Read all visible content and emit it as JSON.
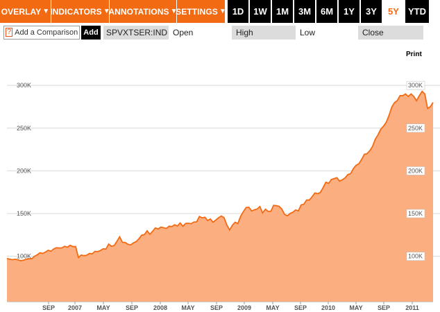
{
  "toolbar": {
    "menus": [
      {
        "label": "OVERLAY"
      },
      {
        "label": "INDICATORS"
      },
      {
        "label": "ANNOTATIONS"
      },
      {
        "label": "SETTINGS"
      }
    ],
    "caret": "▼",
    "ranges": [
      {
        "label": "1D",
        "active": false
      },
      {
        "label": "1W",
        "active": false
      },
      {
        "label": "1M",
        "active": false
      },
      {
        "label": "3M",
        "active": false
      },
      {
        "label": "6M",
        "active": false
      },
      {
        "label": "1Y",
        "active": false
      },
      {
        "label": "3Y",
        "active": false
      },
      {
        "label": "5Y",
        "active": true
      },
      {
        "label": "YTD",
        "active": false
      }
    ]
  },
  "compare": {
    "help": "?",
    "placeholder": "Add a Comparison",
    "add_label": "Add"
  },
  "ticker": "SPVXTSER:IND",
  "fields": {
    "open": "Open",
    "high": "High",
    "low": "Low",
    "close": "Close"
  },
  "print_label": "Print",
  "colors": {
    "accent": "#f26a12",
    "line": "#f26a12",
    "fill": "#fbae80"
  },
  "chart_data": {
    "type": "area",
    "x_tick_labels": [
      "SEP",
      "2007",
      "MAY",
      "SEP",
      "2008",
      "MAY",
      "SEP",
      "2009",
      "MAY",
      "SEP",
      "2010",
      "MAY",
      "SEP",
      "2011"
    ],
    "y_tick_labels": [
      "100K",
      "150K",
      "200K",
      "250K",
      "300K"
    ],
    "y_ticks": [
      100000,
      150000,
      200000,
      250000,
      300000
    ],
    "ylim": [
      47000,
      335000
    ],
    "grid": true,
    "series": [
      {
        "x": [
          0,
          4,
          8,
          12,
          16,
          20,
          24,
          28,
          32,
          36,
          40,
          44,
          48,
          52,
          56,
          60,
          64,
          68,
          72,
          76,
          80,
          84,
          88,
          92,
          96,
          100,
          104,
          108,
          112,
          116,
          120,
          124,
          128,
          132,
          136,
          140,
          144,
          148,
          152,
          156,
          160,
          164,
          168,
          172,
          176,
          180,
          184,
          188,
          192,
          196,
          200,
          204,
          208,
          212,
          216,
          220,
          224,
          228,
          232,
          236,
          240,
          244,
          248,
          252,
          256,
          260,
          264,
          268,
          272,
          276,
          280,
          284,
          288,
          292,
          296,
          300,
          304,
          308,
          312,
          316,
          320,
          324,
          328,
          332,
          336,
          340,
          344,
          348,
          352,
          356,
          360,
          364,
          368,
          372,
          376,
          380,
          384,
          388,
          392,
          396,
          400,
          404,
          408,
          412,
          416,
          420,
          424,
          428,
          432,
          436,
          440,
          444,
          448,
          452,
          456,
          460,
          464,
          468,
          472,
          476,
          480,
          484,
          488,
          492,
          496,
          500,
          504,
          508,
          512,
          516,
          520,
          524,
          528,
          532,
          536,
          540,
          544,
          548,
          552,
          556,
          560,
          564,
          568,
          572,
          576,
          580,
          584,
          588,
          592,
          596,
          600,
          604,
          608,
          612,
          616,
          620
        ],
        "values": [
          97500,
          96600,
          96100,
          96600,
          95800,
          94900,
          95400,
          96600,
          97100,
          97100,
          100000,
          101700,
          104100,
          103400,
          105000,
          107000,
          105900,
          108600,
          110000,
          109700,
          109900,
          111700,
          110700,
          112900,
          111300,
          111400,
          98500,
          101400,
          100700,
          101300,
          103300,
          102800,
          105700,
          105400,
          106800,
          108700,
          108400,
          114300,
          111800,
          112600,
          117600,
          122800,
          116400,
          116300,
          114100,
          113400,
          115700,
          117200,
          120400,
          124700,
          125400,
          129800,
          125800,
          129300,
          133200,
          131900,
          134100,
          133400,
          132700,
          135300,
          134800,
          136900,
          135400,
          139100,
          135100,
          138500,
          138700,
          138200,
          140100,
          140300,
          146600,
          145000,
          145700,
          141800,
          143700,
          139800,
          142600,
          145200,
          147100,
          145200,
          136500,
          130700,
          136300,
          139900,
          138300,
          146800,
          152300,
          157100,
          157400,
          153000,
          154400,
          155300,
          158200,
          150800,
          155100,
          152600,
          152700,
          159600,
          159300,
          158400,
          155200,
          149000,
          147400,
          150100,
          151600,
          154200,
          153200,
          160100,
          160900,
          165900,
          165800,
          169700,
          174100,
          173200,
          174800,
          180300,
          186700,
          185300,
          189900,
          190900,
          192000,
          188000,
          189500,
          191700,
          195600,
          196700,
          202500,
          206600,
          208200,
          213300,
          219400,
          220100,
          223600,
          228700,
          237000,
          242300,
          248800,
          252300,
          257100,
          264900,
          274800,
          279800,
          282300,
          288000,
          288000,
          290000,
          287000,
          290000,
          287000,
          282000,
          288000,
          293000,
          290000,
          273000,
          275000,
          280000
        ]
      }
    ]
  }
}
